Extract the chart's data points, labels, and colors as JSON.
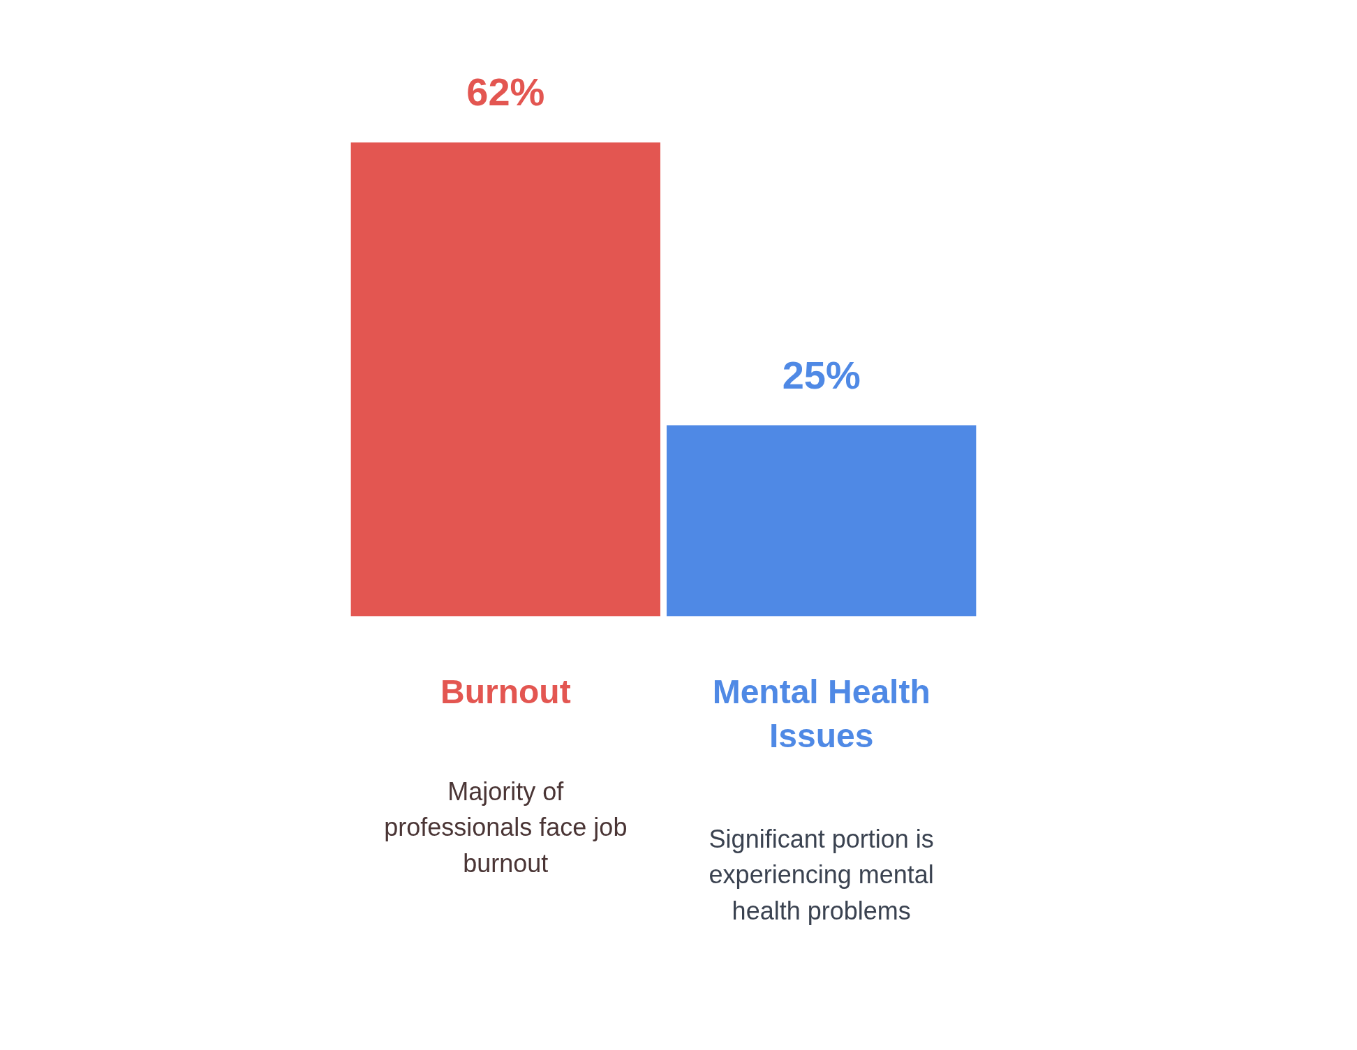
{
  "chart_data": {
    "type": "bar",
    "categories": [
      "Burnout",
      "Mental Health Issues"
    ],
    "colors": [
      "#e35651",
      "#4f89e5"
    ],
    "values": [
      62,
      25
    ],
    "value_labels": [
      "62%",
      "25%"
    ],
    "annotations": [
      "Majority of professionals face job burnout",
      "Significant portion is experiencing mental health problems"
    ]
  }
}
